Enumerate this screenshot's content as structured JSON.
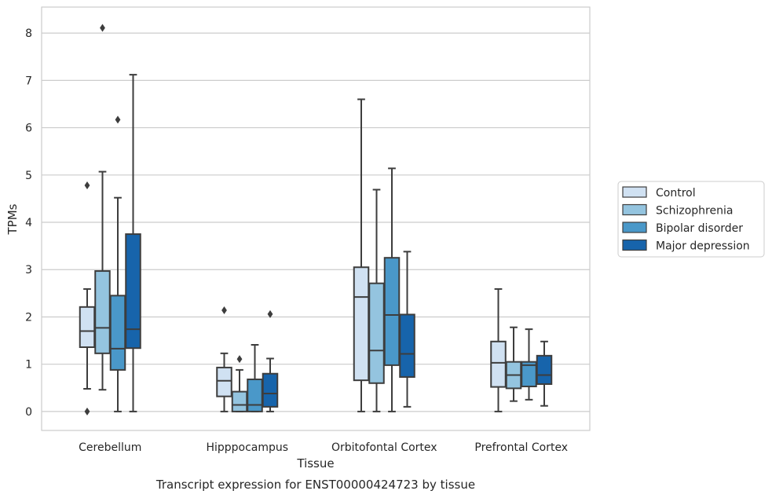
{
  "chart_data": {
    "type": "box",
    "title": "",
    "caption": "Transcript expression for ENST00000424723 by tissue",
    "xlabel": "Tissue",
    "ylabel": "TPMs",
    "ylim": [
      -0.4,
      8.55
    ],
    "yticks": [
      0,
      1,
      2,
      3,
      4,
      5,
      6,
      7,
      8
    ],
    "grid": "horizontal",
    "legend_position": "right",
    "categories": [
      "Cerebellum",
      "Hipppocampus",
      "Orbitofontal Cortex",
      "Prefrontal Cortex"
    ],
    "series": [
      {
        "name": "Control",
        "color": "#d0e1f2",
        "boxes": [
          {
            "whislo": 0.48,
            "q1": 1.36,
            "med": 1.7,
            "q3": 2.21,
            "whishi": 2.59,
            "fliers": [
              4.78,
              0.0
            ]
          },
          {
            "whislo": 0.0,
            "q1": 0.32,
            "med": 0.65,
            "q3": 0.93,
            "whishi": 1.23,
            "fliers": [
              2.14
            ]
          },
          {
            "whislo": 0.0,
            "q1": 0.66,
            "med": 2.42,
            "q3": 3.05,
            "whishi": 6.6,
            "fliers": []
          },
          {
            "whislo": 0.0,
            "q1": 0.52,
            "med": 1.03,
            "q3": 1.48,
            "whishi": 2.59,
            "fliers": []
          }
        ]
      },
      {
        "name": "Schizophrenia",
        "color": "#94c4df",
        "boxes": [
          {
            "whislo": 0.46,
            "q1": 1.23,
            "med": 1.77,
            "q3": 2.97,
            "whishi": 5.07,
            "fliers": [
              8.11
            ]
          },
          {
            "whislo": 0.0,
            "q1": 0.0,
            "med": 0.14,
            "q3": 0.42,
            "whishi": 0.88,
            "fliers": [
              1.11
            ]
          },
          {
            "whislo": 0.0,
            "q1": 0.6,
            "med": 1.29,
            "q3": 2.71,
            "whishi": 4.69,
            "fliers": []
          },
          {
            "whislo": 0.22,
            "q1": 0.49,
            "med": 0.77,
            "q3": 1.05,
            "whishi": 1.78,
            "fliers": []
          }
        ]
      },
      {
        "name": "Bipolar disorder",
        "color": "#4a98c9",
        "boxes": [
          {
            "whislo": 0.0,
            "q1": 0.88,
            "med": 1.33,
            "q3": 2.45,
            "whishi": 4.52,
            "fliers": [
              6.17
            ]
          },
          {
            "whislo": 0.0,
            "q1": 0.0,
            "med": 0.14,
            "q3": 0.68,
            "whishi": 1.41,
            "fliers": []
          },
          {
            "whislo": 0.0,
            "q1": 0.98,
            "med": 2.04,
            "q3": 3.25,
            "whishi": 5.14,
            "fliers": []
          },
          {
            "whislo": 0.25,
            "q1": 0.53,
            "med": 0.98,
            "q3": 1.05,
            "whishi": 1.74,
            "fliers": []
          }
        ]
      },
      {
        "name": "Major depression",
        "color": "#1764ab",
        "boxes": [
          {
            "whislo": 0.0,
            "q1": 1.34,
            "med": 1.74,
            "q3": 3.75,
            "whishi": 7.12,
            "fliers": []
          },
          {
            "whislo": 0.0,
            "q1": 0.1,
            "med": 0.38,
            "q3": 0.8,
            "whishi": 1.12,
            "fliers": [
              2.06
            ]
          },
          {
            "whislo": 0.1,
            "q1": 0.73,
            "med": 1.22,
            "q3": 2.05,
            "whishi": 3.38,
            "fliers": []
          },
          {
            "whislo": 0.12,
            "q1": 0.58,
            "med": 0.77,
            "q3": 1.18,
            "whishi": 1.48,
            "fliers": []
          }
        ]
      }
    ]
  }
}
